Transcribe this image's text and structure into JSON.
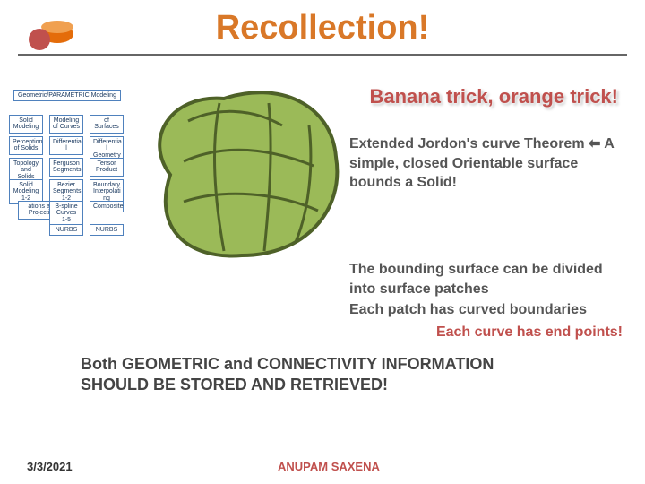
{
  "title": "Recollection!",
  "subtitle": "Banana trick, orange trick!",
  "logo": {
    "color1": "#e46c0a",
    "color2": "#c0504d"
  },
  "center_blob": {
    "fill": "#9bba58",
    "stroke": "#4e6128",
    "stroke_dark": "#376092"
  },
  "text_block_1": "Extended Jordon's curve Theorem ⬅ A simple, closed Orientable surface bounds a Solid!",
  "text_block_2": "The bounding surface can be divided into surface patches",
  "text_block_3": "Each patch has curved boundaries",
  "text_block_4": "Each curve has end points!",
  "bottom_text": "Both GEOMETRIC and CONNECTIVITY INFORMATION\nSHOULD BE STORED AND RETRIEVED!",
  "footer": {
    "date": "3/3/2021",
    "author": "ANUPAM SAXENA"
  },
  "tree": {
    "root": "Geometric/PARAMETRIC Modeling",
    "rows": [
      [
        "Solid Modeling",
        "Modeling of Curves",
        "of Surfaces"
      ],
      [
        "Perception of Solids",
        "Differentia l",
        "Differentia l Geometry"
      ],
      [
        "Topology and Solids",
        "Ferguson Segments",
        "Tensor Product"
      ],
      [
        "Solid Modeling 1-2",
        "Bezier Segments 1-2",
        "Boundary Interpolati ng"
      ],
      [
        "ations and Projection",
        "B-spline Curves 1-5",
        "Composite"
      ],
      [
        "",
        "NURBS",
        "NURBS"
      ]
    ],
    "box_border": "#4f81bd",
    "text_color": "#17365d",
    "font_size": 7
  },
  "colors": {
    "title": "#d97828",
    "accent": "#c0504d",
    "body_text": "#555555"
  }
}
